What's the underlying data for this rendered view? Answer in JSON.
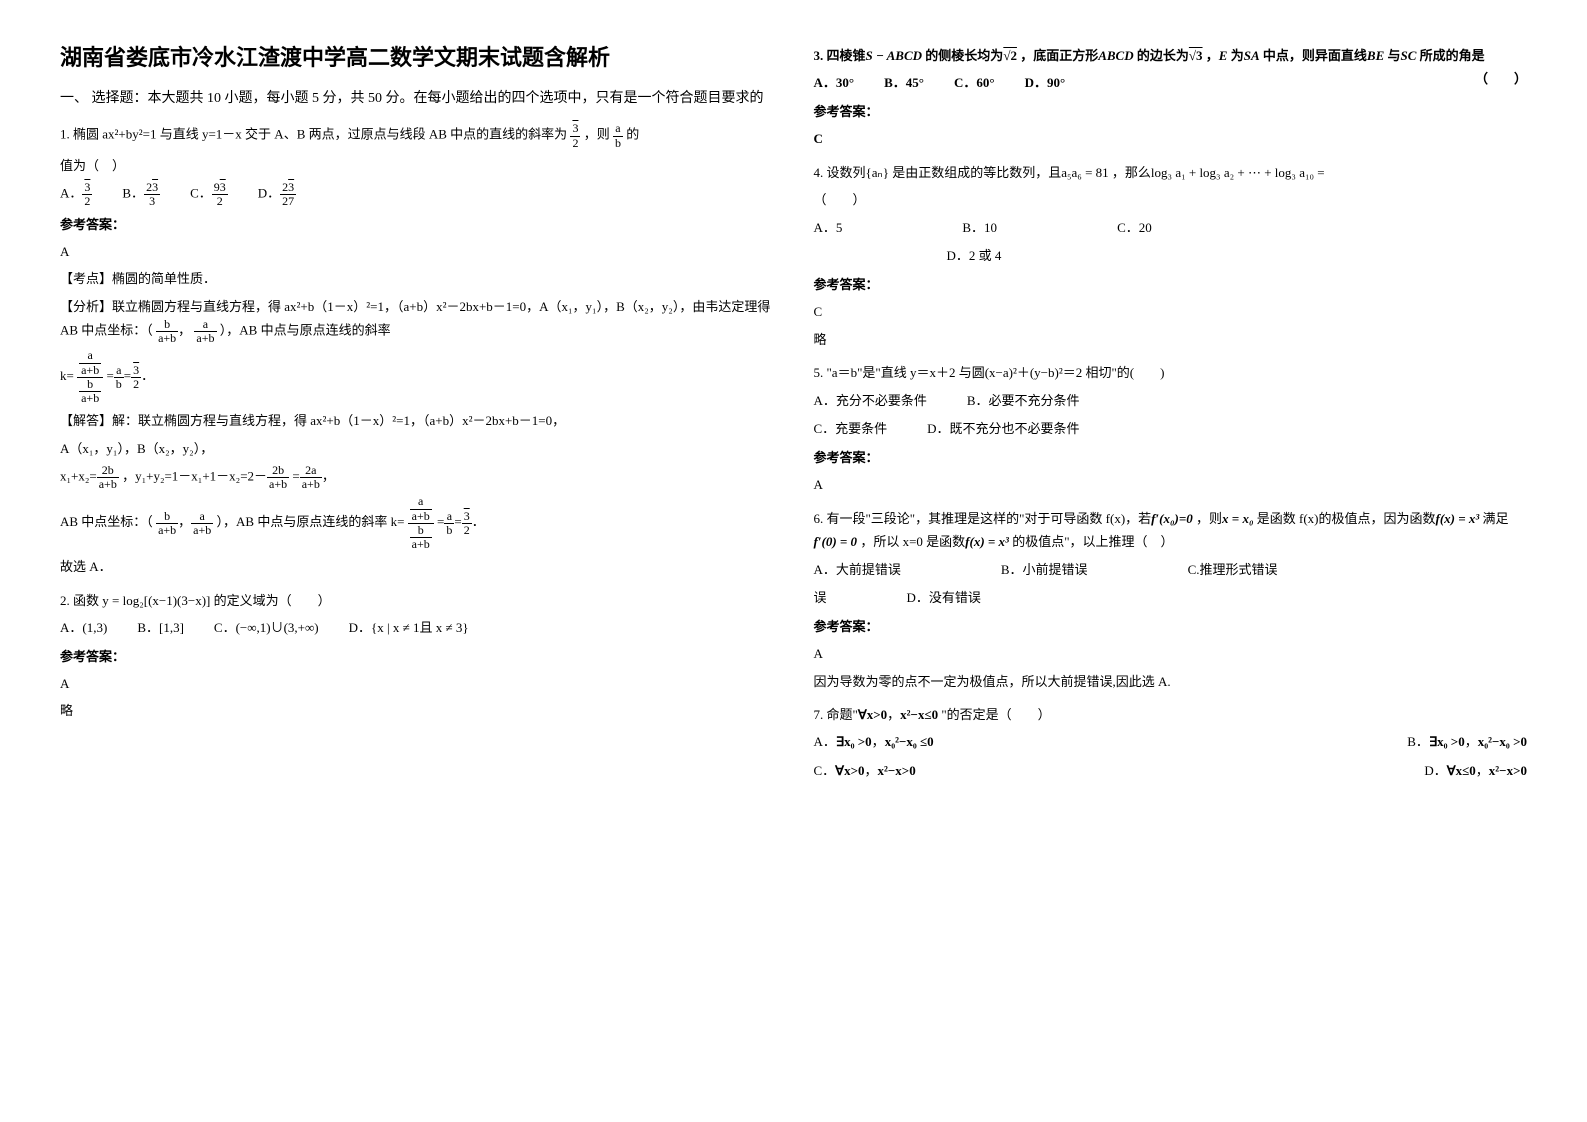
{
  "title": "湖南省娄底市冷水江渣渡中学高二数学文期末试题含解析",
  "section1": "一、 选择题：本大题共 10 小题，每小题 5 分，共 50 分。在每小题给出的四个选项中，只有是一个符合题目要求的",
  "q1": {
    "stem_a": "1. 椭圆 ax²+by²=1 与直线 y=1－x 交于 A、B 两点，过原点与线段 AB 中点的直线的斜率为",
    "stem_b": "，则",
    "stem_c": "的",
    "stem_d": "值为（　）",
    "optA_label": "A．",
    "optB_label": "B．",
    "optC_label": "C．",
    "optD_label": "D．",
    "ans_label": "参考答案：",
    "ans": "A",
    "analysis_label": "【考点】椭圆的简单性质．",
    "fenxi": "【分析】联立椭圆方程与直线方程，得 ax²+b（1－x）²=1，（a+b）x²－2bx+b－1=0，A（x₁，y₁），B（x₂，y₂），由韦达定理得 AB 中点坐标：（",
    "fenxi2": "），AB 中点与原点连线的斜率",
    "k_eq": "k=",
    "jieda": "【解答】解：联立椭圆方程与直线方程，得 ax²+b（1－x）²=1，（a+b）x²－2bx+b－1=0，",
    "jieda2": "A（x₁，y₁），B（x₂，y₂），",
    "x1x2": "x₁+x₂=",
    "y1y2": "，y₁+y₂=1－x₁+1－x₂=2－",
    "eq2": "=",
    "mid": "AB 中点坐标：（",
    "mid2": "），AB 中点与原点连线的斜率 k=",
    "gu": "故选 A．"
  },
  "q2": {
    "stem": "2. 函数",
    "expr": "y = log₂[(x−1)(3−x)]",
    "stem2": "的定义域为（　　）",
    "optA": "A．",
    "optAv": "(1,3)",
    "optB": "B．",
    "optBv": "[1,3]",
    "optC": "C．",
    "optCv": "(−∞,1)∪(3,+∞)",
    "optD": "D．",
    "optDv": "{x | x ≠ 1且 x ≠ 3}",
    "ans_label": "参考答案：",
    "ans": "A",
    "lue": "略"
  },
  "q3": {
    "stem_a": "3. 四棱锥",
    "sabcd": "S − ABCD",
    "stem_b": "的侧棱长均为",
    "sq2": "√2",
    "stem_c": "，底面正方形",
    "abcd": "ABCD",
    "stem_d": "的边长为",
    "sq3": "√3",
    "stem_e": "，",
    "E": "E",
    "stem_f": "为",
    "SA": "SA",
    "stem_g": "中点，则异面直线",
    "BE": "BE",
    "stem_h": "与",
    "SC": "SC",
    "stem_i": "所成的角是",
    "paren": "（　　）",
    "optA": "A．30°",
    "optB": "B．45°",
    "optC": "C．60°",
    "optD": "D．90°",
    "ans_label": "参考答案：",
    "ans": "C"
  },
  "q4": {
    "stem_a": "4. 设数列",
    "an": "{aₙ}",
    "stem_b": "是由正数组成的等比数列，且",
    "cond": "a₅a₆ = 81",
    "stem_c": "，那么",
    "expr": "log₃ a₁ + log₃ a₂ + ⋯ + log₃ a₁₀ =",
    "paren": "（　　）",
    "optA": "A．5",
    "optB": "B．10",
    "optC": "C．20",
    "optD": "D．2 或 4",
    "ans_label": "参考答案：",
    "ans": "C",
    "lue": "略"
  },
  "q5": {
    "stem": "5. \"a＝b\"是\"直线 y＝x＋2 与圆(x−a)²＋(y−b)²＝2 相切\"的(　　)",
    "optA": "A．充分不必要条件",
    "optB": "B．必要不充分条件",
    "optC": "C．充要条件",
    "optD": "D．既不充分也不必要条件",
    "ans_label": "参考答案：",
    "ans": "A"
  },
  "q6": {
    "stem_a": "6. 有一段\"三段论\"，其推理是这样的\"对于可导函数 f(x)，若",
    "cond1": "f′(x₀)=0",
    "stem_b": "，则",
    "cond2": "x = x₀",
    "stem_c": "是函数 f(x)的极值点，因为函数",
    "fx": "f(x) = x³",
    "stem_d": "满足",
    "f0": "f′(0) = 0",
    "stem_e": "，所以 x=0 是函数",
    "fx2": "f(x) = x³",
    "stem_f": "的极值点\"，以上推理（　）",
    "optA": "A．大前提错误",
    "optB": "B．小前提错误",
    "optC": "C.推理形式错误",
    "optD": "D．没有错误",
    "ans_label": "参考答案：",
    "ans": "A",
    "exp": "因为导数为零的点不一定为极值点，所以大前提错误,因此选 A."
  },
  "q7": {
    "stem_a": "7. 命题\"",
    "p1": "∀x>0",
    "comma": "，",
    "p2": "x²−x≤0",
    "stem_b": "\"的否定是（　　）",
    "optA_l": "A．",
    "optA_1": "∃x₀ >0",
    "optA_2": "x₀²−x₀ ≤0",
    "optB_l": "B．",
    "optB_1": "∃x₀ >0",
    "optB_2": "x₀²−x₀ >0",
    "optC_l": "C．",
    "optC_1": "∀x>0",
    "optC_2": "x²−x>0",
    "optD_l": "D．",
    "optD_1": "∀x≤0",
    "optD_2": "x²−x>0"
  }
}
